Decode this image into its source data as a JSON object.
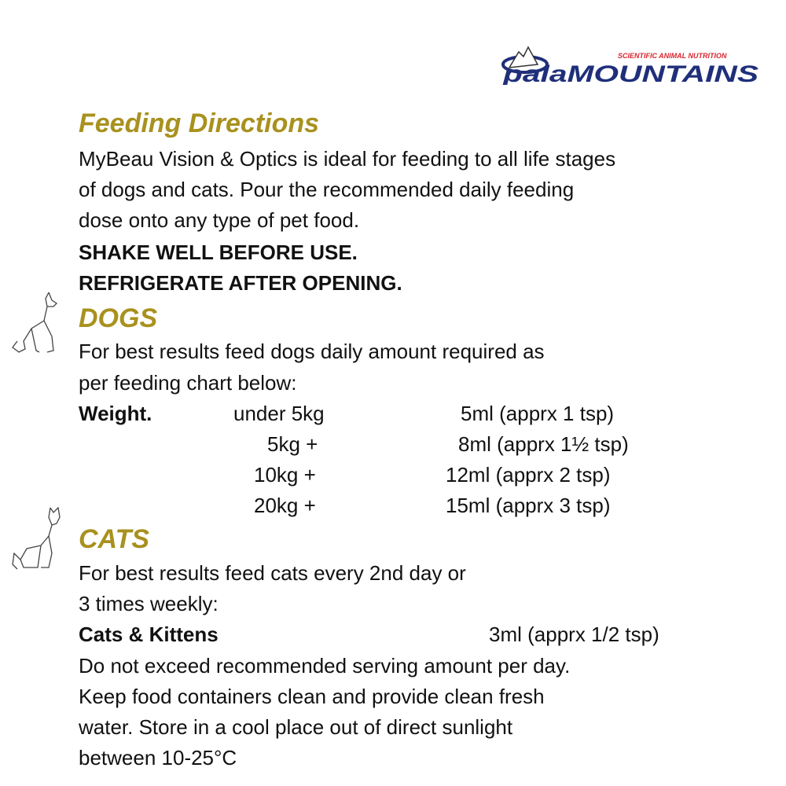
{
  "logo": {
    "brand_prefix": "pala",
    "brand_main": "MOUNTAINS",
    "tagline": "SCIENTIFIC ANIMAL NUTRITION",
    "colors": {
      "blue": "#1f2f7a",
      "red": "#d8262e"
    }
  },
  "heading_color": "#a8911e",
  "title": "Feeding Directions",
  "intro": [
    "MyBeau Vision & Optics is ideal for feeding to all life stages",
    "of dogs and cats. Pour the recommended daily feeding",
    "dose onto any type of pet food."
  ],
  "warnings": [
    "SHAKE WELL BEFORE USE.",
    "REFRIGERATE AFTER OPENING."
  ],
  "dogs": {
    "heading": "DOGS",
    "text": [
      "For best results feed dogs daily amount required as",
      "per feeding chart below:"
    ],
    "label": "Weight.",
    "rows": [
      {
        "weight": "under 5kg",
        "dose": "5ml (apprx 1 tsp)"
      },
      {
        "weight": "5kg +",
        "dose": "8ml (apprx 1½ tsp)"
      },
      {
        "weight": "10kg +",
        "dose": "12ml (apprx 2 tsp)"
      },
      {
        "weight": "20kg +",
        "dose": "15ml (apprx 3 tsp)"
      }
    ]
  },
  "cats": {
    "heading": "CATS",
    "text": [
      "For best results feed cats every 2nd day or",
      "3 times weekly:"
    ],
    "label": "Cats & Kittens",
    "dose": "3ml (apprx 1/2 tsp)"
  },
  "footer": [
    "Do not exceed recommended serving amount per day.",
    "Keep food containers clean and provide clean fresh",
    "water. Store in a cool place out of direct sunlight",
    "between 10-25°C"
  ]
}
